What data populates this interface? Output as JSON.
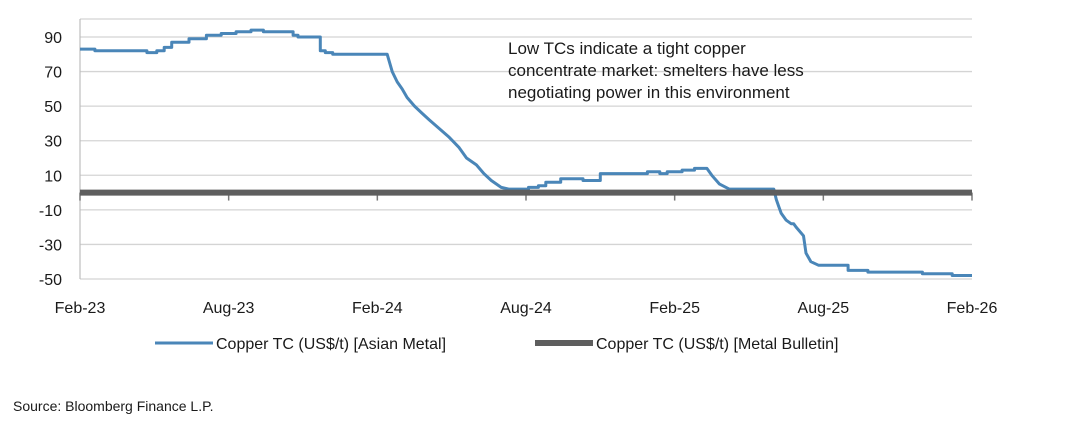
{
  "chart_data": {
    "type": "line",
    "title": "",
    "xlabel": "",
    "ylabel": "",
    "ylim": [
      -50,
      100
    ],
    "yticks": [
      90,
      70,
      50,
      30,
      10,
      -10,
      -30,
      -50
    ],
    "x_tick_labels": [
      "Feb-23",
      "Aug-23",
      "Feb-24",
      "Aug-24",
      "Feb-25",
      "Aug-25",
      "Feb-26"
    ],
    "x_domain_months": [
      0,
      36
    ],
    "grid": true,
    "series": [
      {
        "name": "Copper TC (US$/t)  [Asian Metal]",
        "color": "#4a86b8",
        "x_months": [
          0,
          0.6,
          0.6,
          2.7,
          2.7,
          3.1,
          3.1,
          3.4,
          3.4,
          3.7,
          3.7,
          4.4,
          4.4,
          5.1,
          5.1,
          5.7,
          5.7,
          6.3,
          6.3,
          6.9,
          6.9,
          7.4,
          7.4,
          8.6,
          8.6,
          8.8,
          8.8,
          9.7,
          9.7,
          9.9,
          9.9,
          10.2,
          10.2,
          12.4,
          12.6,
          12.8,
          13,
          13.2,
          13.5,
          13.8,
          14.1,
          14.5,
          14.9,
          15.3,
          15.6,
          16,
          16.3,
          16.6,
          17,
          17.3,
          17.6,
          18.1,
          18.1,
          18.5,
          18.5,
          18.8,
          18.8,
          19.4,
          19.4,
          20.3,
          20.3,
          20.7,
          20.7,
          21,
          21,
          22.9,
          22.9,
          23.4,
          23.4,
          23.7,
          23.7,
          24.3,
          24.3,
          24.8,
          24.8,
          25.3,
          25.3,
          25.5,
          25.8,
          26.2,
          26.2,
          28,
          28,
          28.1,
          28.2,
          28.3,
          28.5,
          28.7,
          28.8,
          28.9,
          29.2,
          29.3,
          29.5,
          29.8,
          30.2,
          31,
          31,
          31.8,
          31.8,
          33.4,
          33.4,
          34,
          34,
          35.2,
          35.2,
          36
        ],
        "values": [
          83,
          83,
          82,
          82,
          81,
          81,
          82,
          82,
          84,
          84,
          87,
          87,
          89,
          89,
          91,
          91,
          92,
          92,
          93,
          93,
          94,
          94,
          93,
          93,
          91,
          91,
          90,
          90,
          82,
          82,
          81,
          81,
          80,
          80,
          70,
          64,
          60,
          55,
          50,
          46,
          42,
          37,
          32,
          26,
          20,
          16,
          11,
          7,
          3,
          2,
          2,
          2,
          3,
          3,
          4,
          4,
          6,
          6,
          8,
          8,
          7,
          7,
          7,
          7,
          11,
          11,
          12,
          12,
          11,
          11,
          12,
          12,
          13,
          13,
          14,
          14,
          14,
          10,
          5,
          2,
          2,
          2,
          2,
          -4,
          -8,
          -12,
          -16,
          -18,
          -18,
          -20,
          -25,
          -35,
          -40,
          -42,
          -42,
          -42,
          -45,
          -45,
          -46,
          -46,
          -46,
          -46,
          -47,
          -47,
          -48,
          -48
        ]
      },
      {
        "name": "Copper TC (US$/t)  [Metal Bulletin]",
        "color": "#5e5e5e",
        "x_months": [
          0,
          36
        ],
        "values": [
          0,
          0
        ]
      }
    ],
    "annotations": [
      "Low TCs indicate a tight copper concentrate market: smelters have less negotiating power in this environment"
    ],
    "legend_position": "bottom"
  },
  "source": "Source: Bloomberg Finance L.P."
}
